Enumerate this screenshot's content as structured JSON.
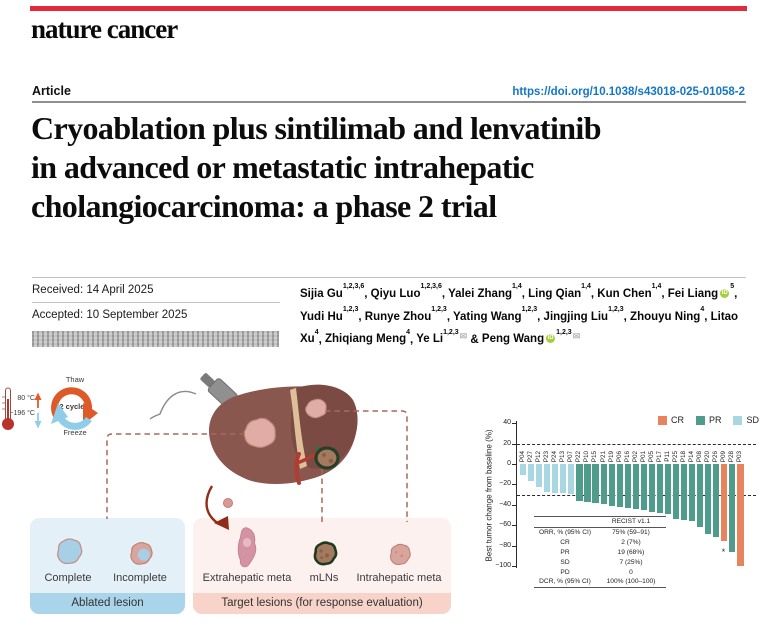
{
  "masthead": {
    "journal": "nature cancer"
  },
  "header": {
    "article_label": "Article",
    "doi": "https://doi.org/10.1038/s43018-025-01058-2"
  },
  "title_lines": [
    "Cryoablation plus sintilimab and lenvatinib",
    "in advanced or metastatic intrahepatic",
    "cholangiocarcinoma: a phase 2 trial"
  ],
  "dates": {
    "received": "Received: 14 April 2025",
    "accepted": "Accepted: 10 September 2025"
  },
  "authors": {
    "separator": ", ",
    "last_separator": "&",
    "list": [
      {
        "name": "Sijia Gu",
        "sup": "1,2,3,6"
      },
      {
        "name": "Qiyu Luo",
        "sup": "1,2,3,6"
      },
      {
        "name": "Yalei Zhang",
        "sup": "1,4"
      },
      {
        "name": "Ling Qian",
        "sup": "1,4"
      },
      {
        "name": "Kun Chen",
        "sup": "1,4"
      },
      {
        "name": "Fei Liang",
        "sup": "5",
        "orcid": true
      },
      {
        "name": "Yudi Hu",
        "sup": "1,2,3"
      },
      {
        "name": "Runye Zhou",
        "sup": "1,2,3"
      },
      {
        "name": "Yating Wang",
        "sup": "1,2,3"
      },
      {
        "name": "Jingjing Liu",
        "sup": "1,2,3"
      },
      {
        "name": "Zhouyu Ning",
        "sup": "4"
      },
      {
        "name": "Litao Xu",
        "sup": "4"
      },
      {
        "name": "Zhiqiang Meng",
        "sup": "4"
      },
      {
        "name": "Ye Li",
        "sup": "1,2,3",
        "email": true
      },
      {
        "name": "Peng Wang",
        "sup": "1,2,3",
        "orcid": true,
        "email": true
      }
    ]
  },
  "figure": {
    "cryo": {
      "temp_high": "80 °C",
      "temp_low": "−196 °C",
      "thaw_label": "Thaw",
      "freeze_label": "Freeze",
      "cycles_label": "2 cycles"
    },
    "ablated_box": {
      "item_labels": [
        "Complete",
        "Incomplete"
      ],
      "footer": "Ablated lesion"
    },
    "target_box": {
      "item_labels": [
        "Extrahepatic meta",
        "mLNs",
        "Intrahepatic meta"
      ],
      "footer": "Target lesions (for response evaluation)"
    }
  },
  "chart_data": {
    "type": "bar",
    "title": "",
    "ylabel": "Best tumor change from baseline (%)",
    "ylim": [
      -100,
      40
    ],
    "yticks": [
      40,
      20,
      0,
      -20,
      -40,
      -60,
      -80,
      -100
    ],
    "reference_lines": [
      20,
      -30
    ],
    "grid": false,
    "legend_position": "top-right",
    "legend": [
      {
        "label": "CR",
        "color": "#E8845D"
      },
      {
        "label": "PR",
        "color": "#4F9B8C"
      },
      {
        "label": "SD",
        "color": "#A9D6E3"
      }
    ],
    "bars": [
      {
        "patient": "P04",
        "value": -11,
        "response": "SD"
      },
      {
        "patient": "P27",
        "value": -17,
        "response": "SD"
      },
      {
        "patient": "P12",
        "value": -23,
        "response": "SD"
      },
      {
        "patient": "P23",
        "value": -27,
        "response": "SD"
      },
      {
        "patient": "P24",
        "value": -28,
        "response": "SD"
      },
      {
        "patient": "P13",
        "value": -28,
        "response": "SD"
      },
      {
        "patient": "P07",
        "value": -29,
        "response": "SD"
      },
      {
        "patient": "P22",
        "value": -36,
        "response": "PR"
      },
      {
        "patient": "P10",
        "value": -37,
        "response": "PR"
      },
      {
        "patient": "P15",
        "value": -38,
        "response": "PR"
      },
      {
        "patient": "P21",
        "value": -39,
        "response": "PR"
      },
      {
        "patient": "P19",
        "value": -41,
        "response": "PR"
      },
      {
        "patient": "P06",
        "value": -42,
        "response": "PR"
      },
      {
        "patient": "P16",
        "value": -43,
        "response": "PR"
      },
      {
        "patient": "P02",
        "value": -44,
        "response": "PR"
      },
      {
        "patient": "P01",
        "value": -45,
        "response": "PR"
      },
      {
        "patient": "P05",
        "value": -47,
        "response": "PR"
      },
      {
        "patient": "P17",
        "value": -48,
        "response": "PR"
      },
      {
        "patient": "P11",
        "value": -49,
        "response": "PR"
      },
      {
        "patient": "P25",
        "value": -54,
        "response": "PR"
      },
      {
        "patient": "P18",
        "value": -55,
        "response": "PR"
      },
      {
        "patient": "P14",
        "value": -56,
        "response": "PR"
      },
      {
        "patient": "P08",
        "value": -62,
        "response": "PR"
      },
      {
        "patient": "P20",
        "value": -69,
        "response": "PR"
      },
      {
        "patient": "P26",
        "value": -72,
        "response": "PR"
      },
      {
        "patient": "P09",
        "value": -75,
        "response": "CR"
      },
      {
        "patient": "P28",
        "value": -86,
        "response": "PR"
      },
      {
        "patient": "P03",
        "value": -100,
        "response": "CR"
      }
    ],
    "annotation": {
      "text": "*",
      "patient": "P09",
      "at_value": -85
    },
    "inset_table": {
      "header_right": "RECIST v1.1",
      "rows": [
        [
          "ORR, % (95% CI)",
          "75% (59–91)"
        ],
        [
          "CR",
          "2 (7%)"
        ],
        [
          "PR",
          "19 (68%)"
        ],
        [
          "SD",
          "7 (25%)"
        ],
        [
          "PD",
          "0"
        ],
        [
          "DCR, % (95% CI)",
          "100% (100–100)"
        ]
      ]
    }
  },
  "colors": {
    "accent_red": "#E3293C",
    "link_blue": "#1476C6",
    "cr": "#E8845D",
    "pr": "#4F9B8C",
    "sd": "#A9D6E3"
  }
}
